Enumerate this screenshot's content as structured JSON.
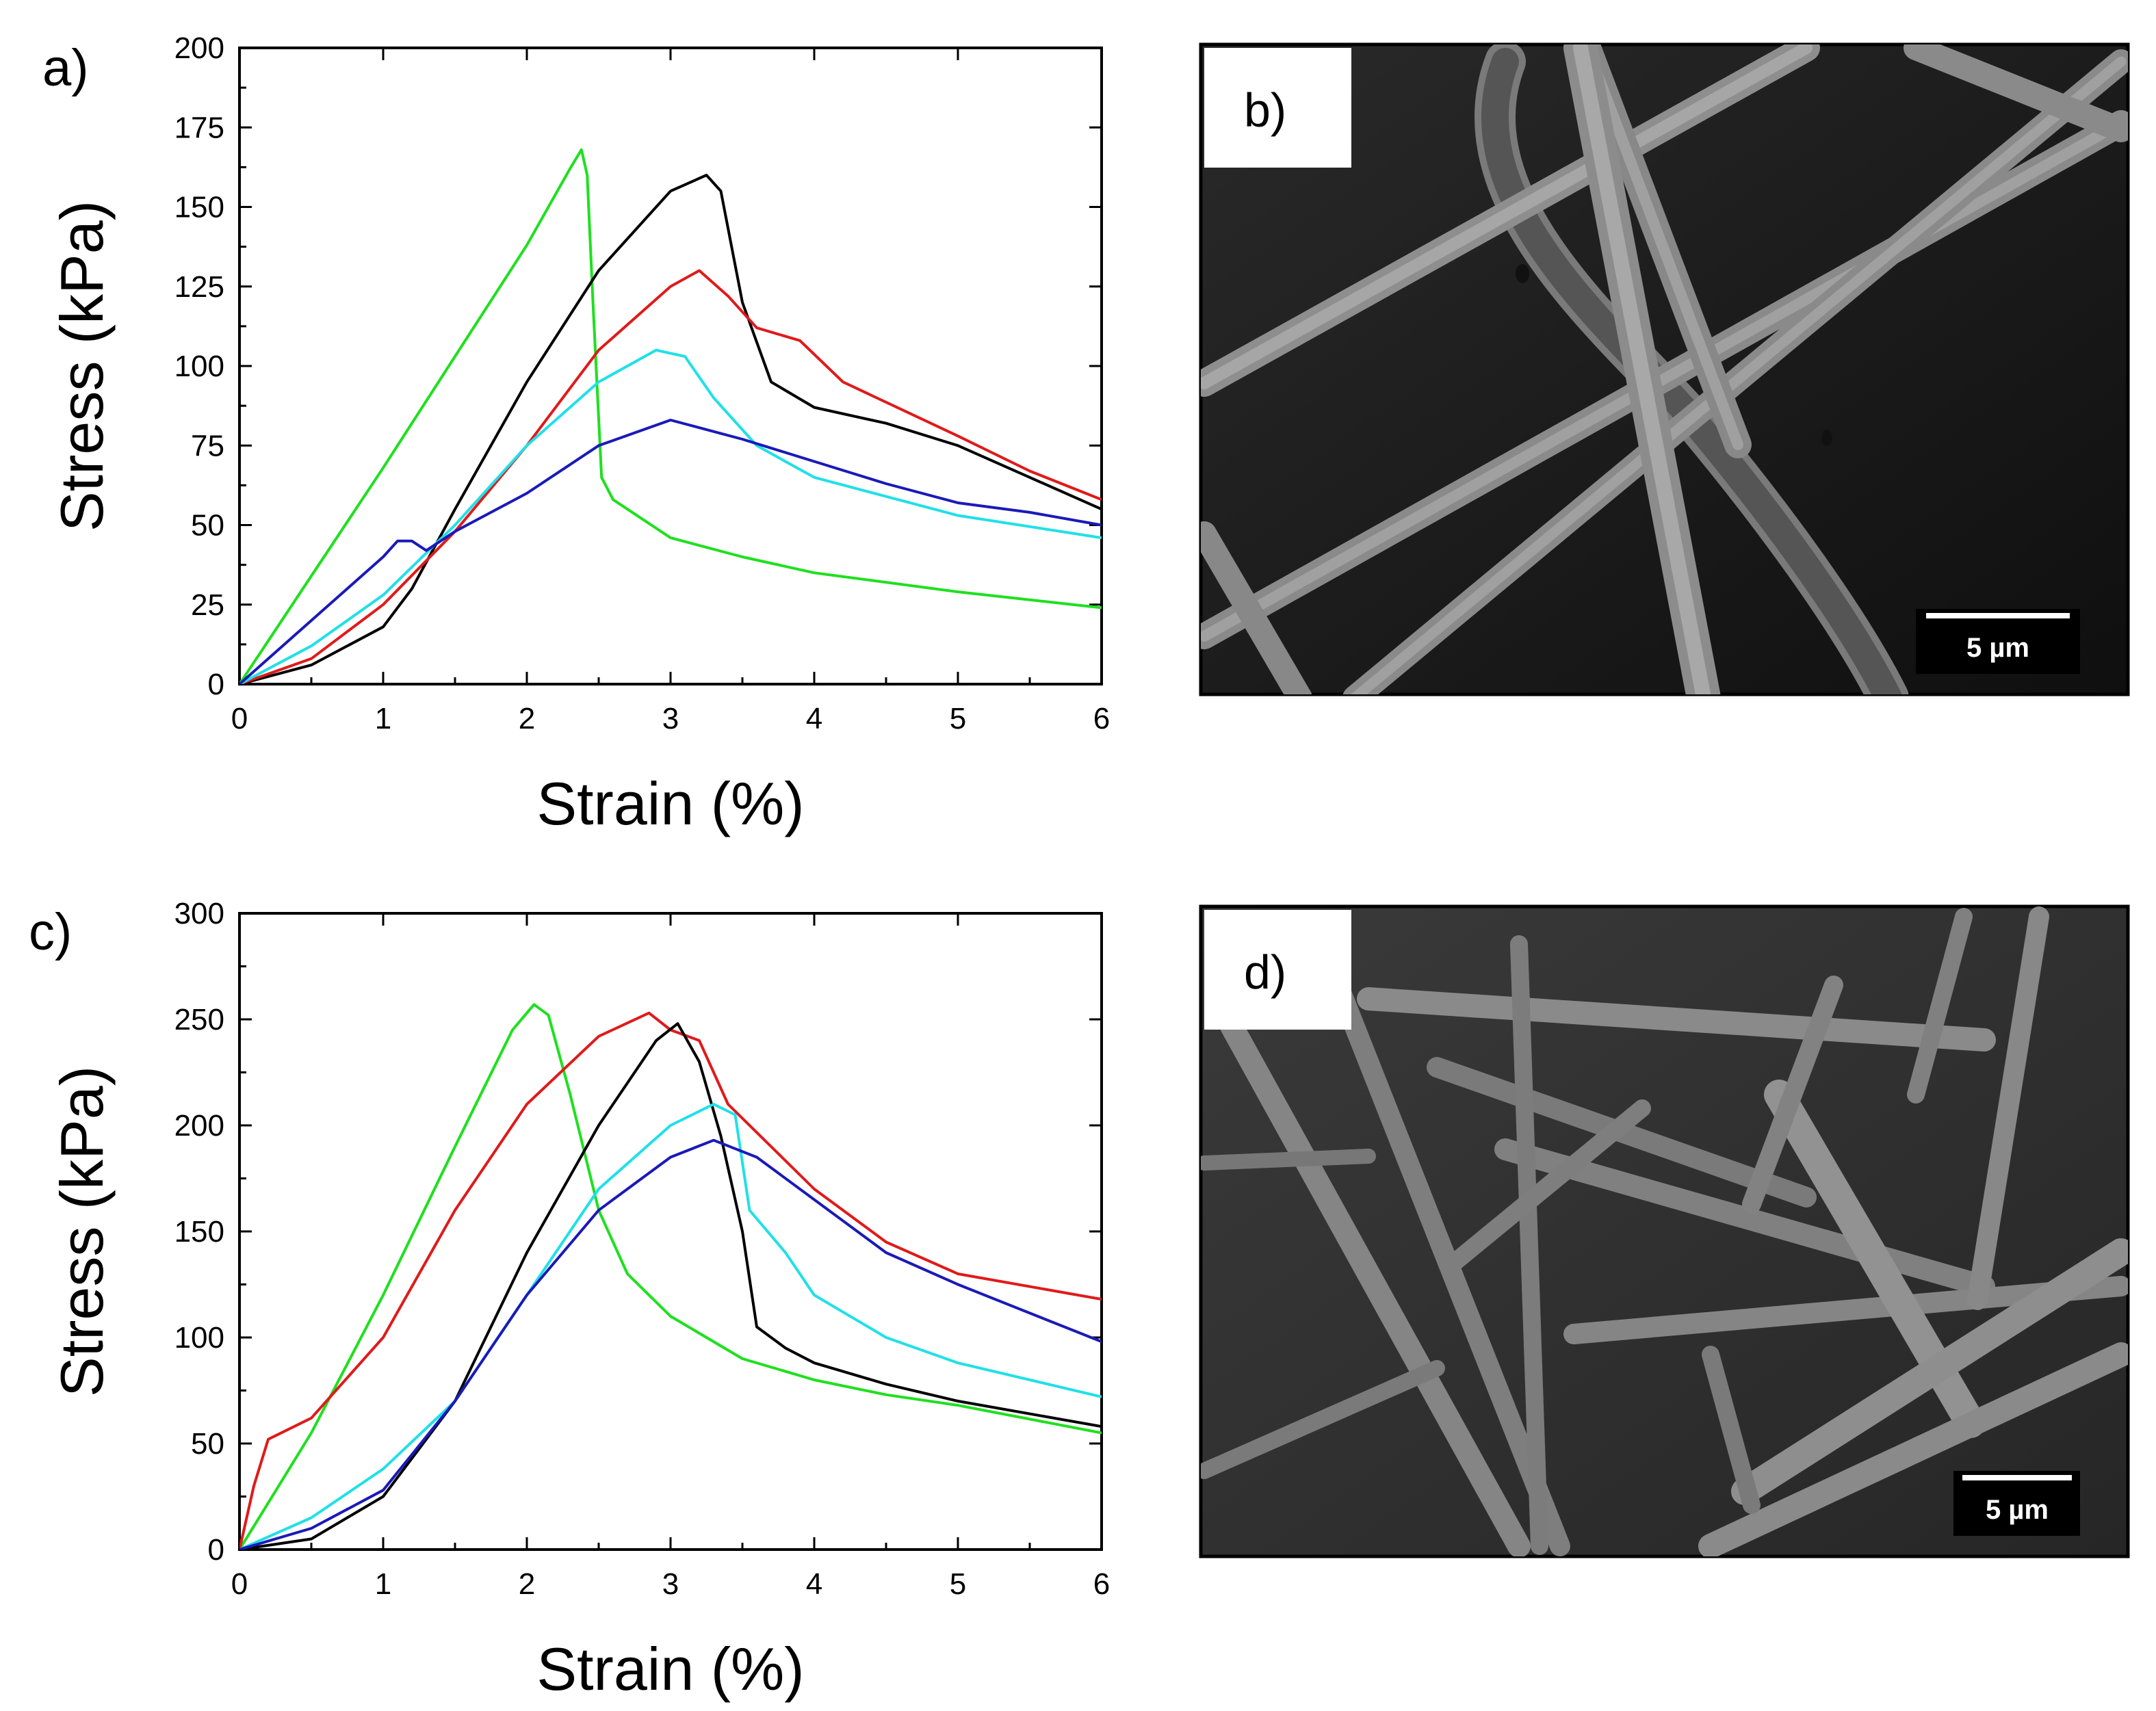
{
  "colors": {
    "green": "#1ee01e",
    "black": "#000000",
    "red": "#e01a1a",
    "cyan": "#20e0e8",
    "blue": "#1a1ab8"
  },
  "panels": {
    "a": "a)",
    "b": "b)",
    "c": "c)",
    "d": "d)"
  },
  "sem": {
    "b": {
      "scale_bar": "5 µm"
    },
    "d": {
      "scale_bar": "5 µm"
    }
  },
  "chart_data": [
    {
      "type": "line",
      "panel": "a)",
      "xlabel": "Strain (%)",
      "ylabel": "Stress (kPa)",
      "xlim": [
        0,
        6
      ],
      "ylim": [
        0,
        200
      ],
      "xticks": [
        0,
        1,
        2,
        3,
        4,
        5,
        6
      ],
      "yticks": [
        0,
        25,
        50,
        75,
        100,
        125,
        150,
        175,
        200
      ],
      "grid": false,
      "series": [
        {
          "color": "green",
          "x": [
            0,
            0.5,
            1.0,
            1.5,
            2.0,
            2.3,
            2.38,
            2.42,
            2.46,
            2.52,
            2.6,
            2.8,
            3.0,
            3.5,
            4.0,
            5.0,
            6.0
          ],
          "y": [
            0,
            34,
            68,
            103,
            138,
            162,
            168,
            160,
            120,
            65,
            58,
            52,
            46,
            40,
            35,
            29,
            24
          ]
        },
        {
          "color": "black",
          "x": [
            0,
            0.5,
            1.0,
            1.2,
            1.5,
            2.0,
            2.5,
            3.0,
            3.25,
            3.35,
            3.5,
            3.7,
            4.0,
            4.5,
            5.0,
            5.5,
            6.0
          ],
          "y": [
            0,
            6,
            18,
            30,
            55,
            95,
            130,
            155,
            160,
            155,
            120,
            95,
            87,
            82,
            75,
            65,
            55
          ]
        },
        {
          "color": "red",
          "x": [
            0,
            0.5,
            1.0,
            1.5,
            2.0,
            2.5,
            3.0,
            3.2,
            3.4,
            3.6,
            3.9,
            4.2,
            5.0,
            5.5,
            6.0
          ],
          "y": [
            0,
            8,
            25,
            48,
            75,
            105,
            125,
            130,
            122,
            112,
            108,
            95,
            78,
            67,
            58
          ]
        },
        {
          "color": "cyan",
          "x": [
            0,
            0.5,
            1.0,
            1.5,
            2.0,
            2.5,
            2.9,
            3.1,
            3.3,
            3.6,
            4.0,
            5.0,
            6.0
          ],
          "y": [
            0,
            12,
            28,
            50,
            75,
            95,
            105,
            103,
            90,
            75,
            65,
            53,
            46
          ]
        },
        {
          "color": "blue",
          "x": [
            0,
            0.5,
            1.0,
            1.1,
            1.2,
            1.3,
            1.5,
            2.0,
            2.5,
            3.0,
            3.5,
            4.0,
            4.5,
            5.0,
            5.5,
            6.0
          ],
          "y": [
            0,
            20,
            40,
            45,
            45,
            42,
            48,
            60,
            75,
            83,
            77,
            70,
            63,
            57,
            54,
            50
          ]
        }
      ]
    },
    {
      "type": "line",
      "panel": "c)",
      "xlabel": "Strain (%)",
      "ylabel": "Stress (kPa)",
      "xlim": [
        0,
        6
      ],
      "ylim": [
        0,
        300
      ],
      "xticks": [
        0,
        1,
        2,
        3,
        4,
        5,
        6
      ],
      "yticks": [
        0,
        50,
        100,
        150,
        200,
        250,
        300
      ],
      "grid": false,
      "series": [
        {
          "color": "green",
          "x": [
            0,
            0.5,
            1.0,
            1.5,
            1.9,
            2.05,
            2.15,
            2.3,
            2.5,
            2.7,
            3.0,
            3.5,
            4.0,
            4.5,
            5.0,
            6.0
          ],
          "y": [
            0,
            55,
            120,
            190,
            245,
            257,
            252,
            215,
            160,
            130,
            110,
            90,
            80,
            73,
            68,
            55
          ]
        },
        {
          "color": "red",
          "x": [
            0,
            0.1,
            0.2,
            0.5,
            1.0,
            1.5,
            2.0,
            2.5,
            2.85,
            3.0,
            3.2,
            3.4,
            3.7,
            4.0,
            4.5,
            5.0,
            6.0
          ],
          "y": [
            0,
            30,
            52,
            62,
            100,
            160,
            210,
            242,
            253,
            245,
            240,
            210,
            190,
            170,
            145,
            130,
            118
          ]
        },
        {
          "color": "black",
          "x": [
            0,
            0.5,
            1.0,
            1.5,
            2.0,
            2.5,
            2.9,
            3.05,
            3.2,
            3.35,
            3.5,
            3.6,
            3.8,
            4.0,
            4.5,
            5.0,
            6.0
          ],
          "y": [
            0,
            5,
            25,
            70,
            140,
            200,
            240,
            248,
            230,
            195,
            150,
            105,
            95,
            88,
            78,
            70,
            58
          ]
        },
        {
          "color": "cyan",
          "x": [
            0,
            0.5,
            1.0,
            1.5,
            2.0,
            2.5,
            3.0,
            3.3,
            3.45,
            3.55,
            3.8,
            4.0,
            4.5,
            5.0,
            6.0
          ],
          "y": [
            0,
            15,
            38,
            70,
            120,
            170,
            200,
            210,
            205,
            160,
            140,
            120,
            100,
            88,
            72
          ]
        },
        {
          "color": "blue",
          "x": [
            0,
            0.5,
            1.0,
            1.5,
            2.0,
            2.5,
            3.0,
            3.3,
            3.6,
            4.0,
            4.5,
            5.0,
            6.0
          ],
          "y": [
            0,
            10,
            28,
            70,
            120,
            160,
            185,
            193,
            185,
            165,
            140,
            125,
            98
          ]
        }
      ]
    }
  ]
}
